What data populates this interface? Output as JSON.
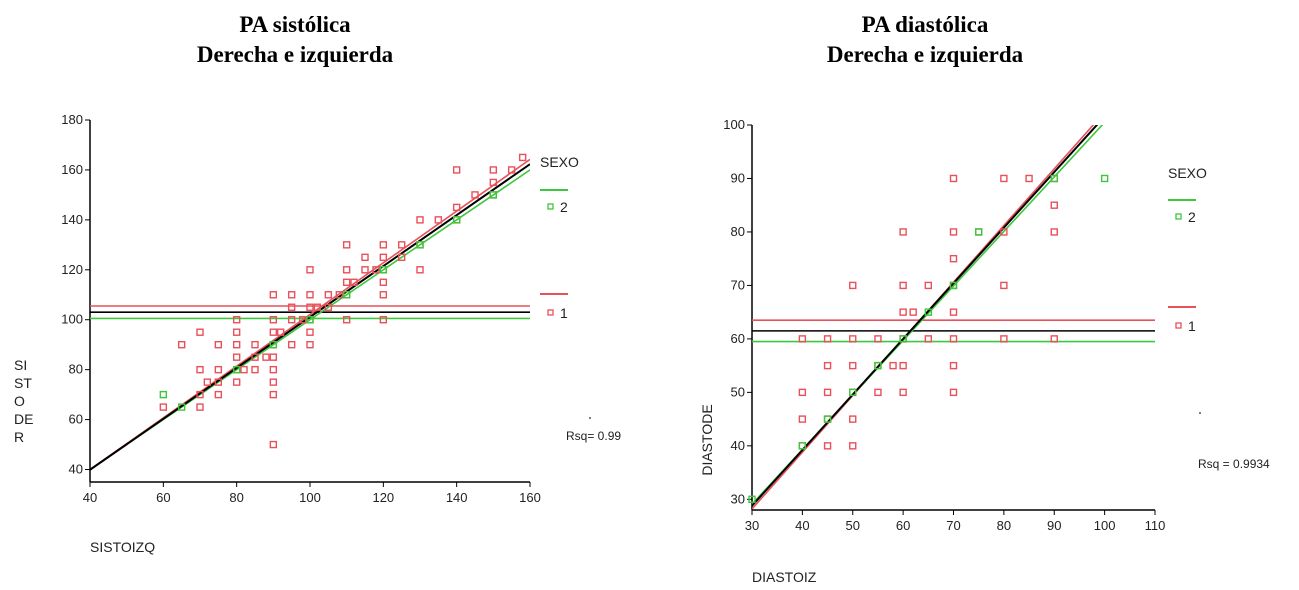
{
  "titles": {
    "left": {
      "line1": "PA sistólica",
      "line2": "Derecha e izquierda"
    },
    "right": {
      "line1": "PA diastólica",
      "line2": "Derecha e izquierda"
    }
  },
  "colors": {
    "sexo_1": "#e8505a",
    "sexo_2": "#3cc83c",
    "total": "#000000"
  },
  "chart_data": [
    {
      "type": "scatter",
      "xlabel": "SISTOIZQ",
      "ylabel_lines": [
        "SI",
        "ST",
        "O",
        "DE",
        "R"
      ],
      "xlim": [
        40,
        160
      ],
      "ylim": [
        35,
        180
      ],
      "xticks": [
        40,
        60,
        80,
        100,
        120,
        140,
        160
      ],
      "yticks": [
        40,
        60,
        80,
        100,
        120,
        140,
        160,
        180
      ],
      "legend": {
        "title": "SEXO",
        "entries": [
          "2",
          "1"
        ],
        "placement": "right"
      },
      "annotation": "Rsq= 0.99",
      "series": [
        {
          "name": "1",
          "color": "#e8505a",
          "points": [
            [
              60,
              65
            ],
            [
              65,
              90
            ],
            [
              70,
              65
            ],
            [
              70,
              70
            ],
            [
              70,
              80
            ],
            [
              70,
              95
            ],
            [
              72,
              75
            ],
            [
              75,
              70
            ],
            [
              75,
              75
            ],
            [
              75,
              80
            ],
            [
              75,
              90
            ],
            [
              80,
              75
            ],
            [
              80,
              80
            ],
            [
              80,
              85
            ],
            [
              80,
              90
            ],
            [
              80,
              95
            ],
            [
              80,
              100
            ],
            [
              82,
              80
            ],
            [
              85,
              80
            ],
            [
              85,
              85
            ],
            [
              85,
              90
            ],
            [
              88,
              85
            ],
            [
              90,
              50
            ],
            [
              90,
              70
            ],
            [
              90,
              75
            ],
            [
              90,
              80
            ],
            [
              90,
              85
            ],
            [
              90,
              90
            ],
            [
              90,
              95
            ],
            [
              90,
              100
            ],
            [
              90,
              110
            ],
            [
              92,
              95
            ],
            [
              95,
              90
            ],
            [
              95,
              100
            ],
            [
              95,
              105
            ],
            [
              95,
              110
            ],
            [
              98,
              100
            ],
            [
              100,
              90
            ],
            [
              100,
              95
            ],
            [
              100,
              100
            ],
            [
              100,
              105
            ],
            [
              100,
              110
            ],
            [
              100,
              120
            ],
            [
              102,
              105
            ],
            [
              105,
              105
            ],
            [
              105,
              110
            ],
            [
              108,
              110
            ],
            [
              110,
              100
            ],
            [
              110,
              110
            ],
            [
              110,
              115
            ],
            [
              110,
              120
            ],
            [
              110,
              130
            ],
            [
              112,
              115
            ],
            [
              115,
              120
            ],
            [
              115,
              125
            ],
            [
              118,
              120
            ],
            [
              120,
              100
            ],
            [
              120,
              110
            ],
            [
              120,
              115
            ],
            [
              120,
              120
            ],
            [
              120,
              125
            ],
            [
              120,
              130
            ],
            [
              125,
              125
            ],
            [
              125,
              130
            ],
            [
              130,
              120
            ],
            [
              130,
              130
            ],
            [
              130,
              140
            ],
            [
              135,
              140
            ],
            [
              140,
              140
            ],
            [
              140,
              145
            ],
            [
              140,
              160
            ],
            [
              145,
              150
            ],
            [
              150,
              150
            ],
            [
              150,
              155
            ],
            [
              150,
              160
            ],
            [
              155,
              160
            ],
            [
              158,
              165
            ]
          ],
          "fit": {
            "slope": 1.035,
            "intercept": -1.4
          },
          "mean_y": 105.5
        },
        {
          "name": "2",
          "color": "#3cc83c",
          "points": [
            [
              60,
              70
            ],
            [
              65,
              65
            ],
            [
              80,
              80
            ],
            [
              90,
              90
            ],
            [
              100,
              100
            ],
            [
              110,
              110
            ],
            [
              120,
              120
            ],
            [
              130,
              130
            ],
            [
              140,
              140
            ],
            [
              150,
              150
            ]
          ],
          "fit": {
            "slope": 1.0,
            "intercept": 0
          },
          "mean_y": 100.5
        },
        {
          "name": "total",
          "color": "#000000",
          "fit": {
            "slope": 1.02,
            "intercept": -0.9
          },
          "mean_y": 103
        }
      ]
    },
    {
      "type": "scatter",
      "xlabel": "DIASTOIZ",
      "ylabel": "DIASTODE",
      "xlim": [
        30,
        110
      ],
      "ylim": [
        28,
        100
      ],
      "xticks": [
        30,
        40,
        50,
        60,
        70,
        80,
        90,
        100,
        110
      ],
      "yticks": [
        30,
        40,
        50,
        60,
        70,
        80,
        90,
        100
      ],
      "legend": {
        "title": "SEXO",
        "entries": [
          "2",
          "1"
        ],
        "placement": "right"
      },
      "annotation": "Rsq = 0.9934",
      "series": [
        {
          "name": "1",
          "color": "#e8505a",
          "points": [
            [
              40,
              40
            ],
            [
              40,
              45
            ],
            [
              40,
              50
            ],
            [
              40,
              60
            ],
            [
              45,
              40
            ],
            [
              45,
              45
            ],
            [
              45,
              50
            ],
            [
              45,
              55
            ],
            [
              45,
              60
            ],
            [
              50,
              40
            ],
            [
              50,
              45
            ],
            [
              50,
              50
            ],
            [
              50,
              55
            ],
            [
              50,
              60
            ],
            [
              50,
              70
            ],
            [
              55,
              50
            ],
            [
              55,
              55
            ],
            [
              55,
              60
            ],
            [
              58,
              55
            ],
            [
              60,
              50
            ],
            [
              60,
              55
            ],
            [
              60,
              60
            ],
            [
              60,
              65
            ],
            [
              60,
              70
            ],
            [
              60,
              80
            ],
            [
              62,
              65
            ],
            [
              65,
              60
            ],
            [
              65,
              70
            ],
            [
              70,
              50
            ],
            [
              70,
              55
            ],
            [
              70,
              60
            ],
            [
              70,
              65
            ],
            [
              70,
              70
            ],
            [
              70,
              75
            ],
            [
              70,
              80
            ],
            [
              70,
              90
            ],
            [
              75,
              80
            ],
            [
              80,
              60
            ],
            [
              80,
              70
            ],
            [
              80,
              80
            ],
            [
              80,
              90
            ],
            [
              85,
              90
            ],
            [
              90,
              60
            ],
            [
              90,
              80
            ],
            [
              90,
              85
            ],
            [
              90,
              90
            ]
          ],
          "fit": {
            "slope": 1.06,
            "intercept": -3.6
          },
          "mean_y": 63.5
        },
        {
          "name": "2",
          "color": "#3cc83c",
          "points": [
            [
              30,
              30
            ],
            [
              40,
              40
            ],
            [
              45,
              45
            ],
            [
              50,
              50
            ],
            [
              55,
              55
            ],
            [
              60,
              60
            ],
            [
              65,
              65
            ],
            [
              70,
              70
            ],
            [
              75,
              80
            ],
            [
              90,
              90
            ],
            [
              100,
              90
            ]
          ],
          "fit": {
            "slope": 1.02,
            "intercept": -1.5
          },
          "mean_y": 59.5
        },
        {
          "name": "total",
          "color": "#000000",
          "fit": {
            "slope": 1.04,
            "intercept": -2.4
          },
          "mean_y": 61.5
        }
      ]
    }
  ]
}
